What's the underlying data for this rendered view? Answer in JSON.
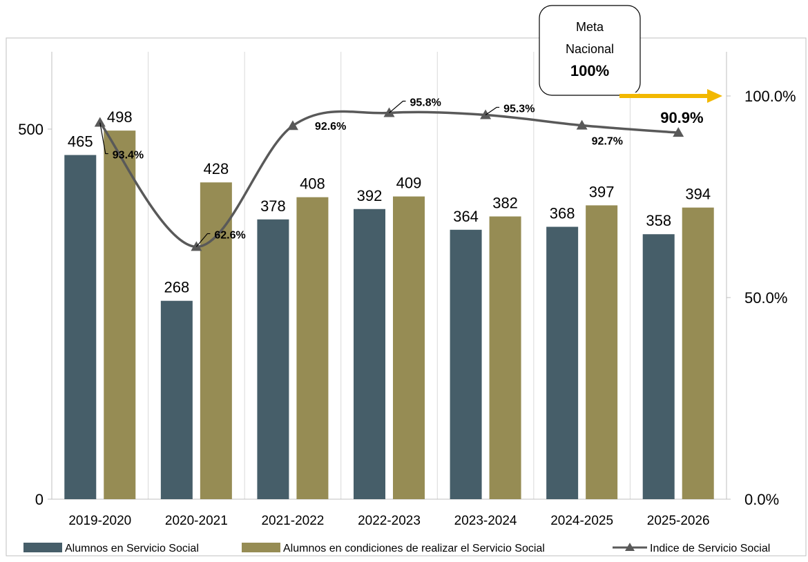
{
  "chart_data": {
    "type": "bar",
    "categories": [
      "2019-2020",
      "2020-2021",
      "2021-2022",
      "2022-2023",
      "2023-2024",
      "2024-2025",
      "2025-2026"
    ],
    "series": [
      {
        "name": "Alumnos en Servicio Social",
        "type": "bar",
        "axis": "left",
        "color": "#465e69",
        "values": [
          465,
          268,
          378,
          392,
          364,
          368,
          358
        ],
        "labels": [
          "465",
          "268",
          "378",
          "392",
          "364",
          "368",
          "358"
        ]
      },
      {
        "name": "Alumnos en condiciones de realizar el Servicio Social",
        "type": "bar",
        "axis": "left",
        "color": "#968c54",
        "values": [
          498,
          428,
          408,
          409,
          382,
          397,
          394
        ],
        "labels": [
          "498",
          "428",
          "408",
          "409",
          "382",
          "397",
          "394"
        ]
      },
      {
        "name": "Indice de Servicio Social",
        "type": "line",
        "axis": "right",
        "color": "#595959",
        "marker": "triangle",
        "values": [
          93.4,
          62.6,
          92.6,
          95.8,
          95.3,
          92.7,
          90.9
        ],
        "labels": [
          "93.4%",
          "62.6%",
          "92.6%",
          "95.8%",
          "95.3%",
          "92.7%",
          "90.9%"
        ]
      }
    ],
    "y_left": {
      "range": [
        0,
        500
      ],
      "ticks": [
        "0",
        "500"
      ]
    },
    "y_right": {
      "range": [
        0,
        100
      ],
      "ticks": [
        "0.0%",
        "50.0%",
        "100.0%"
      ]
    },
    "grid": "vertical",
    "legend": "bottom",
    "annotations": [
      {
        "kind": "callout",
        "lines": [
          "Meta",
          "Nacional",
          "100%"
        ],
        "target_value": 100,
        "arrow_color": "#f2b800"
      }
    ]
  }
}
